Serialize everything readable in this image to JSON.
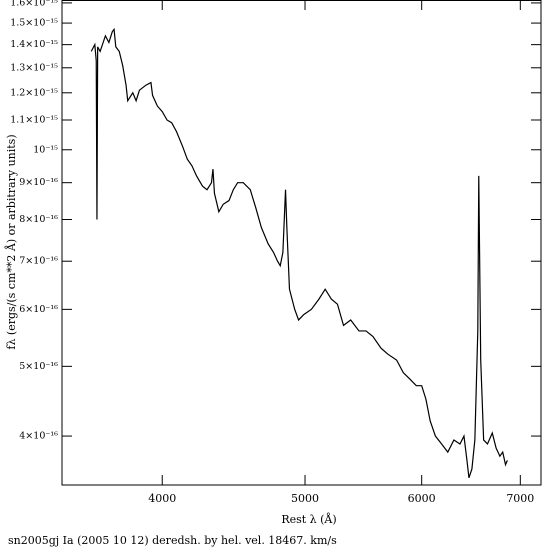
{
  "chart_data": {
    "type": "line",
    "title": "sn2005gj Ia (2005 10 12) deredsh. by hel. vel. 18467. km/s",
    "x_label": "Rest λ (Å)",
    "y_label": "fλ (ergs/(s cm**2 Å) or arbitrary units)",
    "xscale": "log",
    "yscale": "log",
    "xlim": [
      3420,
      7230
    ],
    "ylim": [
      3.42e-16,
      1.615e-15
    ],
    "xticks": [
      4000,
      5000,
      6000,
      7000
    ],
    "yticks": [
      {
        "value": 1.6e-15,
        "label": "1.6×10⁻¹⁵"
      },
      {
        "value": 1.5e-15,
        "label": "1.5×10⁻¹⁵"
      },
      {
        "value": 1.4e-15,
        "label": "1.4×10⁻¹⁵"
      },
      {
        "value": 1.3e-15,
        "label": "1.3×10⁻¹⁵"
      },
      {
        "value": 1.2e-15,
        "label": "1.2×10⁻¹⁵"
      },
      {
        "value": 1.1e-15,
        "label": "1.1×10⁻¹⁵"
      },
      {
        "value": 1e-15,
        "label": "10⁻¹⁵"
      },
      {
        "value": 9e-16,
        "label": "9×10⁻¹⁶"
      },
      {
        "value": 8e-16,
        "label": "8×10⁻¹⁶"
      },
      {
        "value": 7e-16,
        "label": "7×10⁻¹⁶"
      },
      {
        "value": 6e-16,
        "label": "6×10⁻¹⁶"
      },
      {
        "value": 5e-16,
        "label": "5×10⁻¹⁶"
      },
      {
        "value": 4e-16,
        "label": "4×10⁻¹⁶"
      }
    ],
    "color": "#000000",
    "x": [
      3580,
      3600,
      3608,
      3612,
      3616,
      3630,
      3660,
      3680,
      3700,
      3710,
      3720,
      3740,
      3760,
      3780,
      3790,
      3820,
      3840,
      3860,
      3900,
      3930,
      3940,
      3970,
      4000,
      4030,
      4060,
      4090,
      4130,
      4160,
      4190,
      4220,
      4260,
      4290,
      4320,
      4330,
      4340,
      4370,
      4400,
      4440,
      4470,
      4500,
      4540,
      4590,
      4630,
      4670,
      4720,
      4760,
      4790,
      4810,
      4830,
      4850,
      4860,
      4880,
      4920,
      4950,
      4990,
      5050,
      5110,
      5160,
      5210,
      5260,
      5310,
      5370,
      5440,
      5500,
      5560,
      5630,
      5690,
      5770,
      5830,
      5890,
      5950,
      6000,
      6040,
      6080,
      6130,
      6190,
      6250,
      6310,
      6370,
      6410,
      6440,
      6460,
      6490,
      6520,
      6550,
      6560,
      6580,
      6610,
      6650,
      6700,
      6740,
      6780,
      6810,
      6840,
      6860
    ],
    "values": [
      1.37e-15,
      1.4e-15,
      1.33e-15,
      8e-16,
      1.39e-15,
      1.37e-15,
      1.44e-15,
      1.41e-15,
      1.46e-15,
      1.47e-15,
      1.39e-15,
      1.37e-15,
      1.31e-15,
      1.23e-15,
      1.17e-15,
      1.2e-15,
      1.17e-15,
      1.21e-15,
      1.23e-15,
      1.24e-15,
      1.19e-15,
      1.15e-15,
      1.13e-15,
      1.1e-15,
      1.09e-15,
      1.06e-15,
      1.01e-15,
      9.7e-16,
      9.5e-16,
      9.2e-16,
      8.9e-16,
      8.8e-16,
      9e-16,
      9.4e-16,
      8.7e-16,
      8.2e-16,
      8.4e-16,
      8.5e-16,
      8.8e-16,
      9e-16,
      9e-16,
      8.8e-16,
      8.3e-16,
      7.8e-16,
      7.4e-16,
      7.2e-16,
      7e-16,
      6.9e-16,
      7.2e-16,
      8.8e-16,
      7.8e-16,
      6.4e-16,
      6e-16,
      5.8e-16,
      5.9e-16,
      6e-16,
      6.2e-16,
      6.4e-16,
      6.2e-16,
      6.1e-16,
      5.7e-16,
      5.8e-16,
      5.6e-16,
      5.6e-16,
      5.5e-16,
      5.3e-16,
      5.2e-16,
      5.1e-16,
      4.9e-16,
      4.8e-16,
      4.7e-16,
      4.7e-16,
      4.5e-16,
      4.2e-16,
      4e-16,
      3.9e-16,
      3.8e-16,
      3.95e-16,
      3.9e-16,
      4e-16,
      3.7e-16,
      3.5e-16,
      3.6e-16,
      3.95e-16,
      5.6e-16,
      9.2e-16,
      5.1e-16,
      3.95e-16,
      3.9e-16,
      4.04e-16,
      3.85e-16,
      3.75e-16,
      3.8e-16,
      3.65e-16,
      3.7e-16
    ]
  }
}
